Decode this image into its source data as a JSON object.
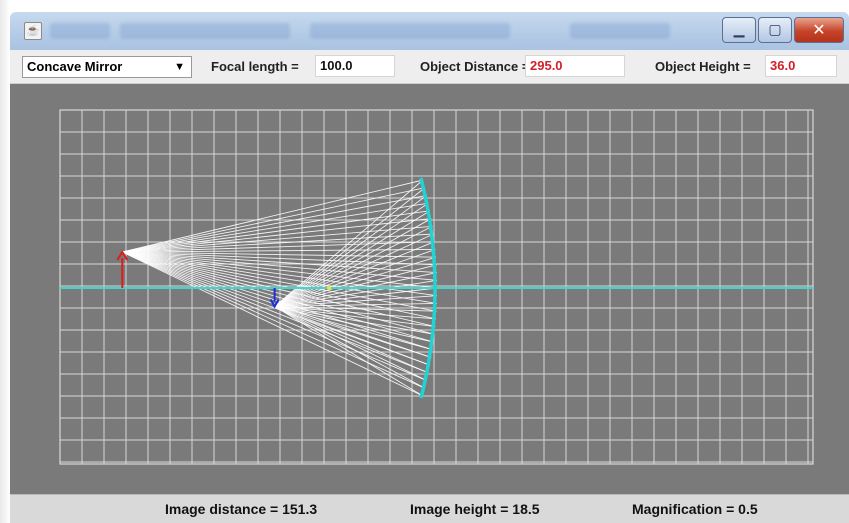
{
  "toolbar": {
    "mirror_type": "Concave Mirror",
    "focal_length_label": "Focal length =",
    "focal_length_value": "100.0",
    "object_distance_label": "Object Distance =",
    "object_distance_value": "295.0",
    "object_height_label": "Object Height =",
    "object_height_value": "36.0"
  },
  "status": {
    "image_distance": "Image distance = 151.3",
    "image_height": "Image height = 18.5",
    "magnification": "Magnification = 0.5"
  },
  "optics": {
    "focal_length": 100.0,
    "object_distance": 295.0,
    "object_height": 36.0,
    "image_distance": 151.3,
    "image_height": 18.5,
    "magnification": 0.5
  },
  "colors": {
    "axis": "#3fd6d0",
    "mirror": "#22d3d3",
    "object_arrow": "#e01b1b",
    "image_arrow": "#1a2ee0",
    "rays": "#ffffff",
    "grid": "#d8d8d8",
    "background": "#7a7a7a",
    "focal_point": "#f0e23a"
  }
}
